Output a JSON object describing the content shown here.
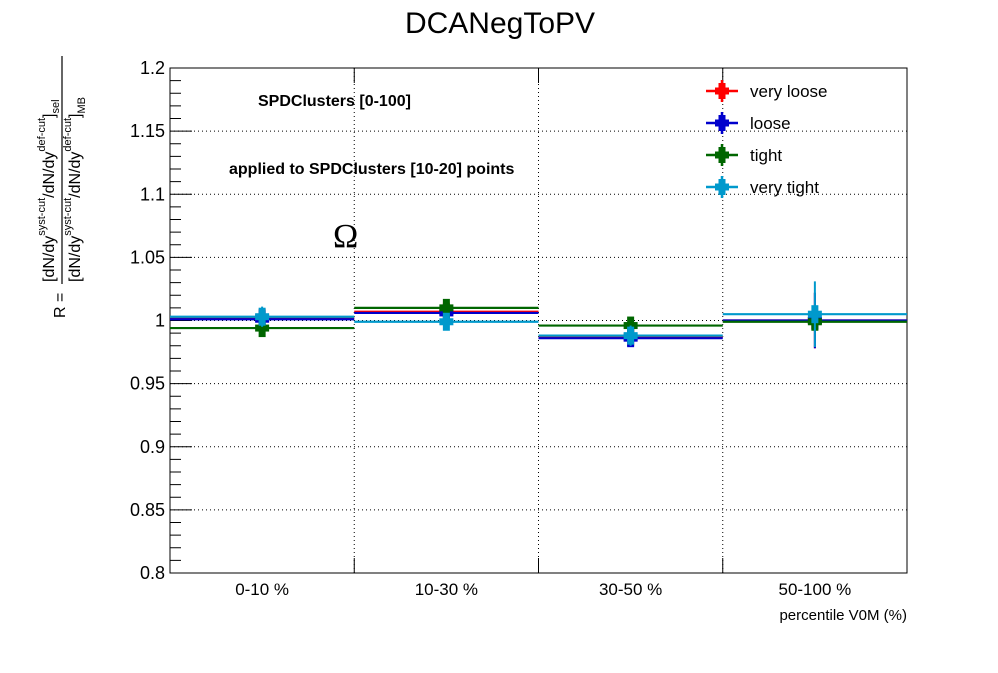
{
  "chart_data": {
    "type": "scatter",
    "title": "DCANegToPV",
    "xlabel": "percentile V0M (%)",
    "ylabel": {
      "prefix": "R =",
      "numerator": [
        "[dN/dy",
        "syst-cut",
        "/dN/dy",
        "def-cut",
        "]",
        "sel"
      ],
      "denominator": [
        "[dN/dy",
        "syst-cut",
        "/dN/dy",
        "def-cut",
        "]",
        "MB"
      ]
    },
    "ylim": [
      0.8,
      1.2
    ],
    "yticks": [
      0.8,
      0.85,
      0.9,
      0.95,
      1.0,
      1.05,
      1.1,
      1.15,
      1.2
    ],
    "ytick_labels": [
      "0.8",
      "0.85",
      "0.9",
      "0.95",
      "1",
      "1.05",
      "1.1",
      "1.15",
      "1.2"
    ],
    "categories": [
      "0-10 %",
      "10-30 %",
      "30-50 %",
      "50-100 %"
    ],
    "grid": true,
    "legend_position": "top-right",
    "annotations": [
      "SPDClusters [0-100]",
      "applied to SPDClusters [10-20] points",
      "Ω"
    ],
    "series": [
      {
        "name": "very loose",
        "color": "#ff0000",
        "values": [
          1.002,
          1.007,
          0.987,
          1.0
        ],
        "errors": [
          0.006,
          0.006,
          0.006,
          0.022
        ]
      },
      {
        "name": "loose",
        "color": "#0000cc",
        "values": [
          1.001,
          1.006,
          0.986,
          1.0
        ],
        "errors": [
          0.006,
          0.006,
          0.006,
          0.022
        ]
      },
      {
        "name": "tight",
        "color": "#006600",
        "values": [
          0.994,
          1.01,
          0.996,
          0.999
        ],
        "errors": [
          0.006,
          0.006,
          0.006,
          0.006
        ]
      },
      {
        "name": "very tight",
        "color": "#0099cc",
        "values": [
          1.003,
          0.999,
          0.988,
          1.005
        ],
        "errors": [
          0.008,
          0.006,
          0.008,
          0.026
        ]
      }
    ]
  }
}
